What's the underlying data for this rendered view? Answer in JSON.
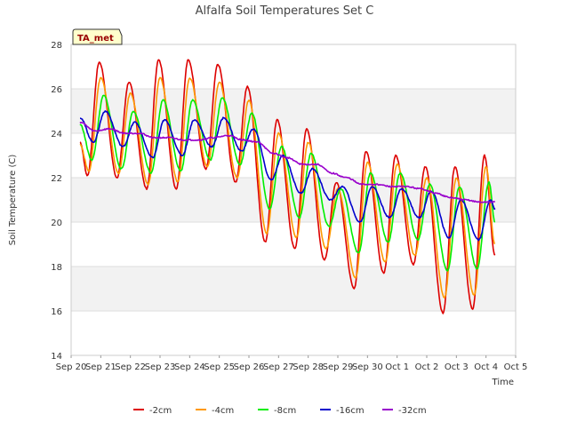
{
  "chart_data": {
    "type": "line",
    "title": "Alfalfa Soil Temperatures Set C",
    "xlabel": "Time",
    "ylabel": "Soil Temperature (C)",
    "annotation": "TA_met",
    "xlim": [
      0,
      15
    ],
    "ylim": [
      14,
      28
    ],
    "yticks": [
      14,
      16,
      18,
      20,
      22,
      24,
      26,
      28
    ],
    "xticks": [
      {
        "x": 0,
        "label": "Sep 20"
      },
      {
        "x": 1,
        "label": "Sep 21"
      },
      {
        "x": 2,
        "label": "Sep 22"
      },
      {
        "x": 3,
        "label": "Sep 23"
      },
      {
        "x": 4,
        "label": "Sep 24"
      },
      {
        "x": 5,
        "label": "Sep 25"
      },
      {
        "x": 6,
        "label": "Sep 26"
      },
      {
        "x": 7,
        "label": "Sep 27"
      },
      {
        "x": 8,
        "label": "Sep 28"
      },
      {
        "x": 9,
        "label": "Sep 29"
      },
      {
        "x": 10,
        "label": "Sep 30"
      },
      {
        "x": 11,
        "label": "Oct 1"
      },
      {
        "x": 12,
        "label": "Oct 2"
      },
      {
        "x": 13,
        "label": "Oct 3"
      },
      {
        "x": 14,
        "label": "Oct 4"
      },
      {
        "x": 15,
        "label": "Oct 5"
      }
    ],
    "grid": true,
    "legend_position": "bottom",
    "series": [
      {
        "name": "-2cm",
        "color": "#dd0000",
        "points": [
          [
            0.3,
            23.6
          ],
          [
            0.55,
            22.1
          ],
          [
            0.95,
            27.2
          ],
          [
            1.55,
            22.0
          ],
          [
            1.95,
            26.3
          ],
          [
            2.55,
            21.5
          ],
          [
            2.95,
            27.3
          ],
          [
            3.55,
            21.5
          ],
          [
            3.95,
            27.3
          ],
          [
            4.55,
            22.4
          ],
          [
            4.95,
            27.1
          ],
          [
            5.55,
            21.8
          ],
          [
            5.95,
            26.1
          ],
          [
            6.55,
            19.1
          ],
          [
            6.95,
            24.6
          ],
          [
            7.55,
            18.8
          ],
          [
            7.95,
            24.2
          ],
          [
            8.55,
            18.3
          ],
          [
            8.95,
            21.8
          ],
          [
            9.55,
            17.0
          ],
          [
            9.95,
            23.2
          ],
          [
            10.55,
            17.7
          ],
          [
            10.95,
            23.0
          ],
          [
            11.55,
            18.1
          ],
          [
            11.95,
            22.5
          ],
          [
            12.55,
            15.9
          ],
          [
            12.95,
            22.5
          ],
          [
            13.55,
            16.1
          ],
          [
            13.95,
            23.0
          ],
          [
            14.3,
            18.5
          ]
        ]
      },
      {
        "name": "-4cm",
        "color": "#ff9900",
        "points": [
          [
            0.3,
            23.5
          ],
          [
            0.6,
            22.3
          ],
          [
            1.0,
            26.5
          ],
          [
            1.6,
            22.2
          ],
          [
            2.0,
            25.8
          ],
          [
            2.6,
            21.7
          ],
          [
            3.0,
            26.5
          ],
          [
            3.6,
            21.8
          ],
          [
            4.0,
            26.5
          ],
          [
            4.6,
            22.5
          ],
          [
            5.0,
            26.3
          ],
          [
            5.6,
            22.0
          ],
          [
            6.0,
            25.5
          ],
          [
            6.6,
            19.5
          ],
          [
            7.0,
            24.0
          ],
          [
            7.6,
            19.3
          ],
          [
            8.0,
            23.6
          ],
          [
            8.6,
            18.8
          ],
          [
            9.0,
            21.5
          ],
          [
            9.6,
            17.5
          ],
          [
            10.0,
            22.7
          ],
          [
            10.6,
            18.2
          ],
          [
            11.0,
            22.6
          ],
          [
            11.6,
            18.5
          ],
          [
            12.0,
            22.0
          ],
          [
            12.6,
            16.6
          ],
          [
            13.0,
            22.0
          ],
          [
            13.6,
            16.7
          ],
          [
            14.0,
            22.5
          ],
          [
            14.3,
            19.0
          ]
        ]
      },
      {
        "name": "-8cm",
        "color": "#00ee00",
        "points": [
          [
            0.3,
            24.4
          ],
          [
            0.7,
            22.8
          ],
          [
            1.1,
            25.7
          ],
          [
            1.7,
            22.4
          ],
          [
            2.1,
            25.0
          ],
          [
            2.7,
            22.2
          ],
          [
            3.1,
            25.5
          ],
          [
            3.7,
            22.3
          ],
          [
            4.1,
            25.5
          ],
          [
            4.7,
            22.8
          ],
          [
            5.1,
            25.6
          ],
          [
            5.7,
            22.6
          ],
          [
            6.1,
            24.9
          ],
          [
            6.7,
            20.6
          ],
          [
            7.1,
            23.4
          ],
          [
            7.7,
            20.2
          ],
          [
            8.1,
            23.1
          ],
          [
            8.7,
            19.8
          ],
          [
            9.1,
            21.5
          ],
          [
            9.7,
            18.6
          ],
          [
            10.1,
            22.2
          ],
          [
            10.7,
            19.1
          ],
          [
            11.1,
            22.2
          ],
          [
            11.7,
            19.2
          ],
          [
            12.1,
            21.7
          ],
          [
            12.7,
            17.8
          ],
          [
            13.1,
            21.6
          ],
          [
            13.7,
            17.9
          ],
          [
            14.1,
            21.8
          ],
          [
            14.3,
            20.0
          ]
        ]
      },
      {
        "name": "-16cm",
        "color": "#0000cc",
        "points": [
          [
            0.3,
            24.7
          ],
          [
            0.75,
            23.6
          ],
          [
            1.15,
            25.0
          ],
          [
            1.75,
            23.4
          ],
          [
            2.15,
            24.5
          ],
          [
            2.75,
            22.9
          ],
          [
            3.15,
            24.6
          ],
          [
            3.75,
            23.0
          ],
          [
            4.15,
            24.6
          ],
          [
            4.75,
            23.4
          ],
          [
            5.15,
            24.7
          ],
          [
            5.75,
            23.2
          ],
          [
            6.15,
            24.2
          ],
          [
            6.75,
            21.9
          ],
          [
            7.15,
            23.0
          ],
          [
            7.75,
            21.3
          ],
          [
            8.15,
            22.4
          ],
          [
            8.75,
            21.0
          ],
          [
            9.15,
            21.6
          ],
          [
            9.75,
            20.0
          ],
          [
            10.15,
            21.6
          ],
          [
            10.75,
            20.2
          ],
          [
            11.15,
            21.5
          ],
          [
            11.75,
            20.2
          ],
          [
            12.15,
            21.4
          ],
          [
            12.75,
            19.3
          ],
          [
            13.15,
            21.0
          ],
          [
            13.75,
            19.2
          ],
          [
            14.15,
            21.0
          ],
          [
            14.3,
            20.6
          ]
        ]
      },
      {
        "name": "-32cm",
        "color": "#9900cc",
        "points": [
          [
            0.3,
            24.5
          ],
          [
            0.8,
            24.1
          ],
          [
            1.3,
            24.2
          ],
          [
            1.8,
            24.0
          ],
          [
            2.3,
            24.0
          ],
          [
            2.8,
            23.8
          ],
          [
            3.3,
            23.8
          ],
          [
            3.8,
            23.7
          ],
          [
            4.3,
            23.7
          ],
          [
            4.8,
            23.8
          ],
          [
            5.3,
            23.9
          ],
          [
            5.8,
            23.7
          ],
          [
            6.3,
            23.6
          ],
          [
            6.8,
            23.1
          ],
          [
            7.3,
            22.9
          ],
          [
            7.8,
            22.6
          ],
          [
            8.3,
            22.6
          ],
          [
            8.8,
            22.2
          ],
          [
            9.3,
            22.0
          ],
          [
            9.8,
            21.7
          ],
          [
            10.3,
            21.7
          ],
          [
            10.8,
            21.6
          ],
          [
            11.3,
            21.6
          ],
          [
            11.8,
            21.5
          ],
          [
            12.3,
            21.3
          ],
          [
            12.8,
            21.1
          ],
          [
            13.3,
            21.0
          ],
          [
            13.8,
            20.9
          ],
          [
            14.3,
            20.9
          ]
        ]
      }
    ]
  }
}
